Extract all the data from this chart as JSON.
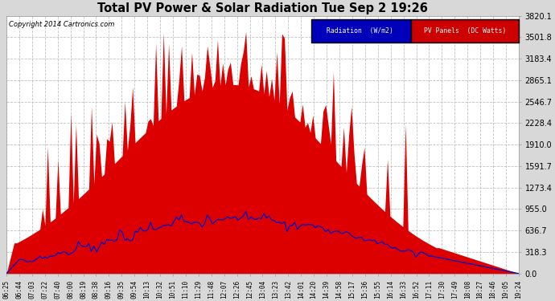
{
  "title": "Total PV Power & Solar Radiation Tue Sep 2 19:26",
  "copyright": "Copyright 2014 Cartronics.com",
  "background_color": "#d8d8d8",
  "plot_bg_color": "#ffffff",
  "grid_color": "#bbbbbb",
  "ymin": 0.0,
  "ymax": 3820.1,
  "yticks": [
    0.0,
    318.3,
    636.7,
    955.0,
    1273.4,
    1591.7,
    1910.0,
    2228.4,
    2546.7,
    2865.1,
    3183.4,
    3501.8,
    3820.1
  ],
  "legend_radiation_label": "Radiation  (W/m2)",
  "legend_pv_label": "PV Panels  (DC Watts)",
  "legend_radiation_bg": "#0000bb",
  "legend_pv_bg": "#cc0000",
  "pv_color": "#dd0000",
  "radiation_color": "#0000cc",
  "x_labels": [
    "06:25",
    "06:44",
    "07:03",
    "07:22",
    "07:40",
    "08:00",
    "08:19",
    "08:38",
    "09:16",
    "09:35",
    "09:54",
    "10:13",
    "10:32",
    "10:51",
    "11:10",
    "11:29",
    "11:48",
    "12:07",
    "12:26",
    "12:45",
    "13:04",
    "13:23",
    "13:42",
    "14:01",
    "14:20",
    "14:39",
    "14:58",
    "15:17",
    "15:36",
    "15:55",
    "16:14",
    "16:33",
    "16:52",
    "17:11",
    "17:30",
    "17:49",
    "18:08",
    "18:27",
    "18:46",
    "19:05",
    "19:24"
  ],
  "num_points": 200
}
